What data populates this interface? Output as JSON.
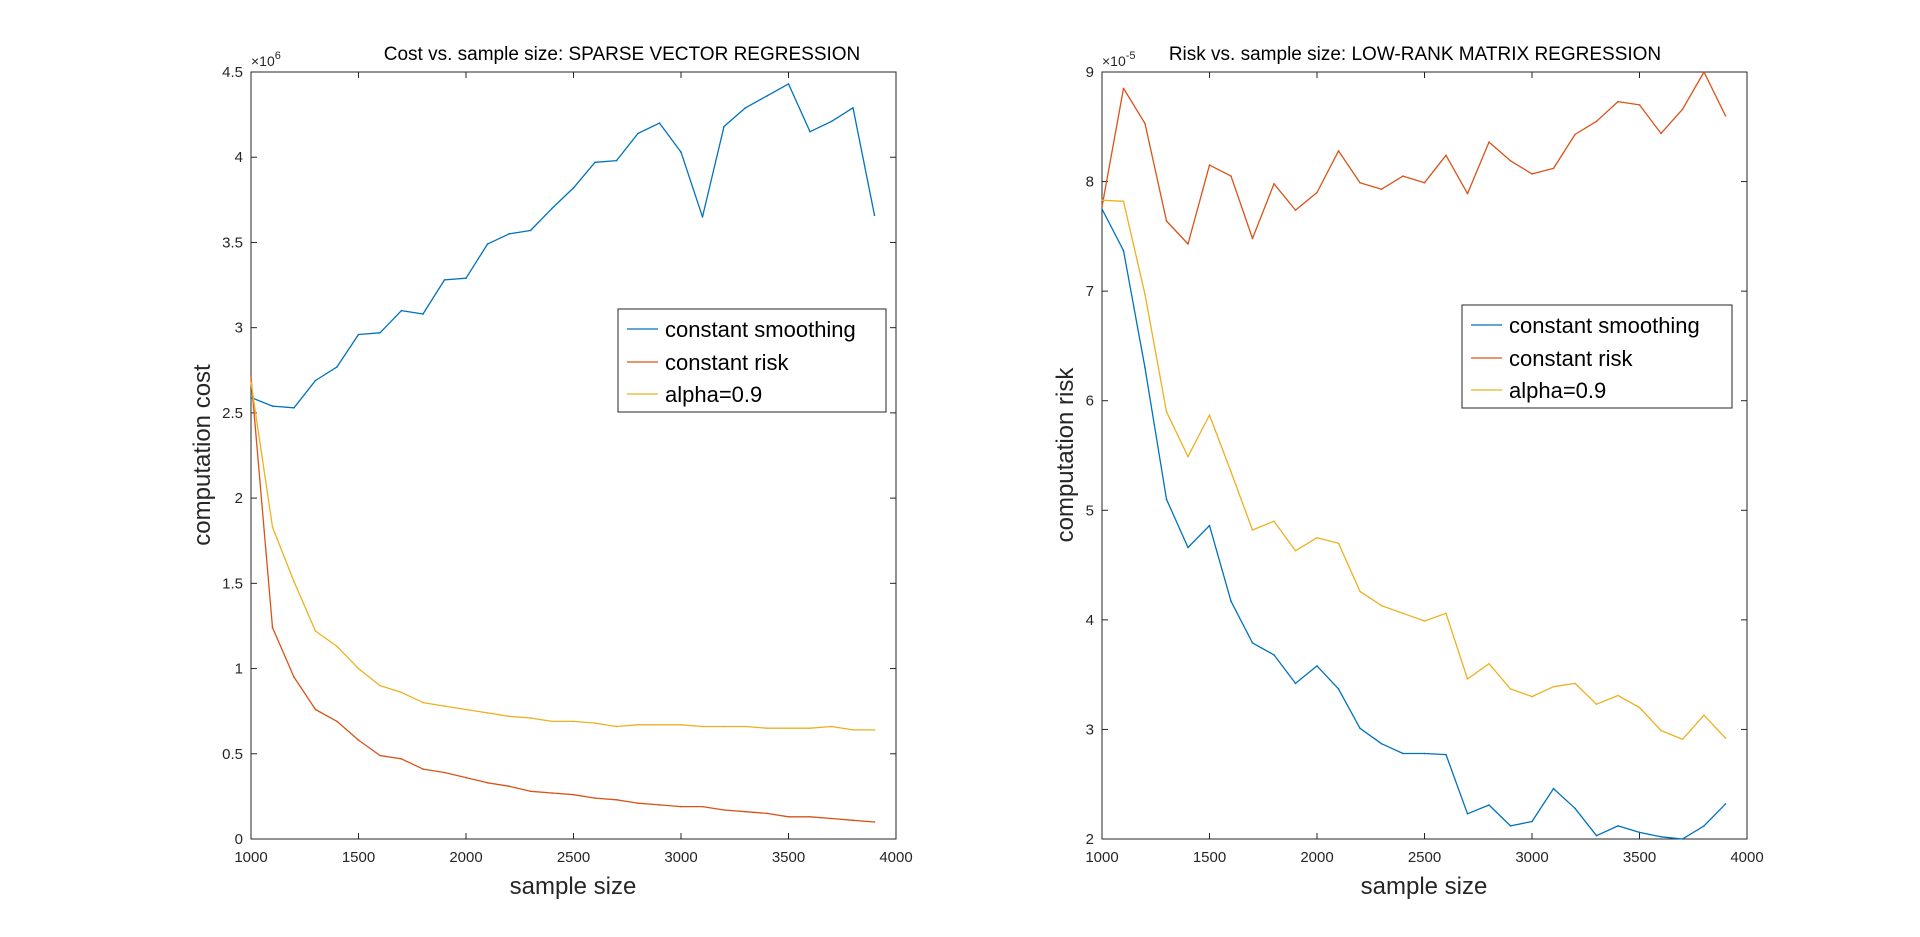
{
  "chart_data": [
    {
      "type": "line",
      "title": "Cost vs. sample size: SPARSE VECTOR REGRESSION",
      "xlabel": "sample size",
      "ylabel": "computation cost",
      "y_exponent_base": "×10",
      "y_exponent_power": "6",
      "xlim": [
        1000,
        4000
      ],
      "ylim": [
        0,
        4.5
      ],
      "xticks": [
        1000,
        1500,
        2000,
        2500,
        3000,
        3500,
        4000
      ],
      "xtick_labels": [
        "1000",
        "1500",
        "2000",
        "2500",
        "3000",
        "3500",
        "4000"
      ],
      "yticks": [
        0,
        0.5,
        1,
        1.5,
        2,
        2.5,
        3,
        3.5,
        4,
        4.5
      ],
      "ytick_labels": [
        "0",
        "0.5",
        "1",
        "1.5",
        "2",
        "2.5",
        "3",
        "3.5",
        "4",
        "4.5"
      ],
      "grid": false,
      "legend_position": "right-middle",
      "x": [
        1000,
        1100,
        1200,
        1300,
        1400,
        1500,
        1600,
        1700,
        1800,
        1900,
        2000,
        2100,
        2200,
        2300,
        2400,
        2500,
        2600,
        2700,
        2800,
        2900,
        3000,
        3100,
        3200,
        3300,
        3400,
        3500,
        3600,
        3700,
        3800,
        3900
      ],
      "series": [
        {
          "name": "constant smoothing",
          "color": "#0072BD",
          "values": [
            2.59,
            2.54,
            2.53,
            2.69,
            2.77,
            2.96,
            2.97,
            3.1,
            3.08,
            3.28,
            3.29,
            3.49,
            3.55,
            3.57,
            3.7,
            3.82,
            3.97,
            3.98,
            4.14,
            4.2,
            4.03,
            3.65,
            4.18,
            4.29,
            4.36,
            4.43,
            4.15,
            4.21,
            4.29,
            3.66
          ]
        },
        {
          "name": "constant risk",
          "color": "#D95319",
          "values": [
            2.71,
            1.24,
            0.95,
            0.76,
            0.69,
            0.58,
            0.49,
            0.47,
            0.41,
            0.39,
            0.36,
            0.33,
            0.31,
            0.28,
            0.27,
            0.26,
            0.24,
            0.23,
            0.21,
            0.2,
            0.19,
            0.19,
            0.17,
            0.16,
            0.15,
            0.13,
            0.13,
            0.12,
            0.11,
            0.1
          ]
        },
        {
          "name": "alpha=0.9",
          "color": "#EDB120",
          "values": [
            2.68,
            1.83,
            1.51,
            1.22,
            1.13,
            1.0,
            0.9,
            0.86,
            0.8,
            0.78,
            0.76,
            0.74,
            0.72,
            0.71,
            0.69,
            0.69,
            0.68,
            0.66,
            0.67,
            0.67,
            0.67,
            0.66,
            0.66,
            0.66,
            0.65,
            0.65,
            0.65,
            0.66,
            0.64,
            0.64
          ]
        }
      ]
    },
    {
      "type": "line",
      "title": "Risk vs. sample size: LOW-RANK MATRIX REGRESSION",
      "xlabel": "sample size",
      "ylabel": "computation risk",
      "y_exponent_base": "×10",
      "y_exponent_power": "-5",
      "xlim": [
        1000,
        4000
      ],
      "ylim": [
        2,
        9
      ],
      "xticks": [
        1000,
        1500,
        2000,
        2500,
        3000,
        3500,
        4000
      ],
      "xtick_labels": [
        "1000",
        "1500",
        "2000",
        "2500",
        "3000",
        "3500",
        "4000"
      ],
      "yticks": [
        2,
        3,
        4,
        5,
        6,
        7,
        8,
        9
      ],
      "ytick_labels": [
        "2",
        "3",
        "4",
        "5",
        "6",
        "7",
        "8",
        "9"
      ],
      "grid": false,
      "legend_position": "right-middle",
      "x": [
        1000,
        1100,
        1200,
        1300,
        1400,
        1500,
        1600,
        1700,
        1800,
        1900,
        2000,
        2100,
        2200,
        2300,
        2400,
        2500,
        2600,
        2700,
        2800,
        2900,
        3000,
        3100,
        3200,
        3300,
        3400,
        3500,
        3600,
        3700,
        3800,
        3900
      ],
      "series": [
        {
          "name": "constant smoothing",
          "color": "#0072BD",
          "values": [
            7.75,
            7.37,
            6.3,
            5.1,
            4.66,
            4.86,
            4.17,
            3.79,
            3.68,
            3.42,
            3.58,
            3.37,
            3.01,
            2.87,
            2.78,
            2.78,
            2.77,
            2.23,
            2.31,
            2.12,
            2.16,
            2.46,
            2.28,
            2.03,
            2.12,
            2.06,
            2.02,
            2.0,
            2.12,
            2.32
          ]
        },
        {
          "name": "constant risk",
          "color": "#D95319",
          "values": [
            7.77,
            8.85,
            8.53,
            7.64,
            7.43,
            8.15,
            8.05,
            7.48,
            7.98,
            7.74,
            7.9,
            8.28,
            7.99,
            7.93,
            8.05,
            7.99,
            8.24,
            7.89,
            8.36,
            8.19,
            8.07,
            8.12,
            8.43,
            8.55,
            8.73,
            8.7,
            8.44,
            8.66,
            9.0,
            8.6
          ]
        },
        {
          "name": "alpha=0.9",
          "color": "#EDB120",
          "values": [
            7.83,
            7.82,
            6.97,
            5.9,
            5.49,
            5.87,
            5.35,
            4.82,
            4.9,
            4.63,
            4.75,
            4.7,
            4.26,
            4.13,
            4.06,
            3.99,
            4.06,
            3.46,
            3.6,
            3.37,
            3.3,
            3.39,
            3.42,
            3.23,
            3.31,
            3.2,
            2.99,
            2.91,
            3.13,
            2.92
          ]
        }
      ]
    }
  ]
}
